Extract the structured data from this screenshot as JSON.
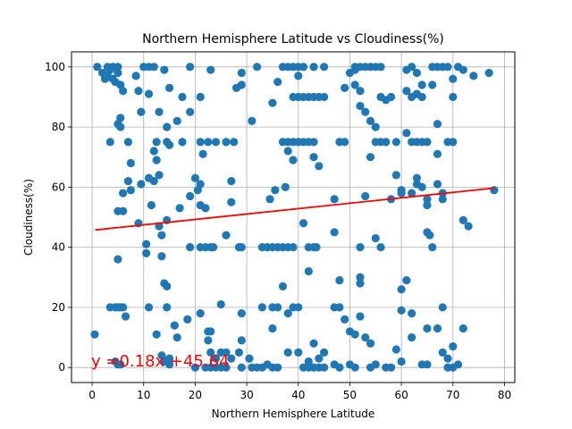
{
  "chart_data": {
    "type": "scatter",
    "title": "Northern Hemisphere Latitude vs Cloudiness(%)",
    "xlabel": "Northern Hemisphere Latitude",
    "ylabel": "Cloudiness(%)",
    "xlim": [
      -4,
      82
    ],
    "ylim": [
      -5,
      105
    ],
    "xticks": [
      0,
      10,
      20,
      30,
      40,
      50,
      60,
      70,
      80
    ],
    "yticks": [
      0,
      20,
      40,
      60,
      80,
      100
    ],
    "grid": true,
    "marker_color": "#1f77b4",
    "regression": {
      "slope": 0.18,
      "intercept": 45.64,
      "x_range": [
        0.6,
        78
      ],
      "color": "#ff0000",
      "equation": "y =0.18x +45.64"
    },
    "series": [
      {
        "points": [
          [
            0.5,
            11
          ],
          [
            1,
            100
          ],
          [
            2,
            98
          ],
          [
            2.5,
            96
          ],
          [
            3,
            100
          ],
          [
            3,
            97
          ],
          [
            3.5,
            99
          ],
          [
            4,
            96
          ],
          [
            4,
            100
          ],
          [
            4.5,
            95
          ],
          [
            5,
            100
          ],
          [
            5,
            98
          ],
          [
            5.5,
            94
          ],
          [
            5,
            81
          ],
          [
            5.5,
            83
          ],
          [
            5.5,
            80
          ],
          [
            3.5,
            75
          ],
          [
            6,
            92
          ],
          [
            6,
            58
          ],
          [
            6,
            52
          ],
          [
            5,
            52
          ],
          [
            6.5,
            17
          ],
          [
            5,
            36
          ],
          [
            3.5,
            20
          ],
          [
            4.5,
            20
          ],
          [
            5,
            20
          ],
          [
            5.5,
            20
          ],
          [
            6,
            20
          ],
          [
            4.5,
            2
          ],
          [
            5,
            1
          ],
          [
            5.5,
            1
          ],
          [
            7,
            75
          ],
          [
            7,
            62
          ],
          [
            7.5,
            68
          ],
          [
            7.5,
            59
          ],
          [
            8.5,
            97
          ],
          [
            9,
            92
          ],
          [
            9.5,
            85
          ],
          [
            9.5,
            61
          ],
          [
            9,
            48
          ],
          [
            10,
            100
          ],
          [
            11,
            100
          ],
          [
            12,
            100
          ],
          [
            10.5,
            41
          ],
          [
            10.5,
            38
          ],
          [
            11,
            91
          ],
          [
            11,
            63
          ],
          [
            11.5,
            54
          ],
          [
            12,
            62
          ],
          [
            11,
            20
          ],
          [
            12,
            72
          ],
          [
            12.5,
            69
          ],
          [
            12.5,
            75
          ],
          [
            13,
            85
          ],
          [
            13,
            64
          ],
          [
            13,
            47
          ],
          [
            13.5,
            44
          ],
          [
            13.5,
            37
          ],
          [
            14,
            28
          ],
          [
            14,
            99
          ],
          [
            14.5,
            80
          ],
          [
            14.5,
            75
          ],
          [
            14.5,
            49
          ],
          [
            14.5,
            27
          ],
          [
            15,
            93
          ],
          [
            15,
            74
          ],
          [
            14.5,
            20
          ],
          [
            12.5,
            11
          ],
          [
            13.5,
            4
          ],
          [
            14,
            2
          ],
          [
            15,
            3
          ],
          [
            15,
            1
          ],
          [
            16,
            14
          ],
          [
            16.5,
            10
          ],
          [
            16.5,
            82
          ],
          [
            17,
            53
          ],
          [
            17.5,
            75
          ],
          [
            17.5,
            90
          ],
          [
            18.5,
            16
          ],
          [
            19,
            57
          ],
          [
            19,
            85
          ],
          [
            19,
            100
          ],
          [
            19,
            40
          ],
          [
            20,
            63
          ],
          [
            20.5,
            59
          ],
          [
            21,
            61
          ],
          [
            21,
            75
          ],
          [
            21,
            90
          ],
          [
            21,
            54
          ],
          [
            21,
            18
          ],
          [
            20,
            0
          ],
          [
            21,
            40
          ],
          [
            22,
            40
          ],
          [
            23,
            40
          ],
          [
            23.5,
            40
          ],
          [
            21.5,
            71
          ],
          [
            22,
            53
          ],
          [
            23,
            99
          ],
          [
            22.5,
            75
          ],
          [
            24,
            75
          ],
          [
            22,
            0
          ],
          [
            23,
            0
          ],
          [
            24,
            0
          ],
          [
            25,
            0
          ],
          [
            26,
            0
          ],
          [
            22.5,
            9
          ],
          [
            22.5,
            12
          ],
          [
            23,
            12
          ],
          [
            23,
            5
          ],
          [
            24,
            3
          ],
          [
            25,
            5
          ],
          [
            26,
            5
          ],
          [
            27,
            3
          ],
          [
            25,
            21
          ],
          [
            26,
            44
          ],
          [
            26,
            75
          ],
          [
            27.5,
            75
          ],
          [
            27,
            62
          ],
          [
            27,
            55
          ],
          [
            28,
            93
          ],
          [
            28.5,
            40
          ],
          [
            29,
            40
          ],
          [
            29,
            18
          ],
          [
            28.5,
            5
          ],
          [
            29,
            9
          ],
          [
            29,
            0
          ],
          [
            29,
            94
          ],
          [
            29,
            98
          ],
          [
            31,
            82
          ],
          [
            32,
            100
          ],
          [
            30.5,
            3
          ],
          [
            31,
            0
          ],
          [
            32,
            0
          ],
          [
            33,
            0
          ],
          [
            34,
            1
          ],
          [
            35,
            0
          ],
          [
            36,
            0
          ],
          [
            33,
            40
          ],
          [
            34,
            40
          ],
          [
            35,
            40
          ],
          [
            36,
            40
          ],
          [
            37,
            40
          ],
          [
            38,
            40
          ],
          [
            39,
            40
          ],
          [
            33,
            20
          ],
          [
            35,
            20
          ],
          [
            36,
            20
          ],
          [
            37,
            27
          ],
          [
            35,
            13
          ],
          [
            38,
            5
          ],
          [
            35,
            88
          ],
          [
            34.5,
            56
          ],
          [
            35.5,
            59
          ],
          [
            37.5,
            60
          ],
          [
            38,
            72
          ],
          [
            37,
            75
          ],
          [
            38,
            75
          ],
          [
            39,
            75
          ],
          [
            40,
            75
          ],
          [
            41,
            75
          ],
          [
            42,
            75
          ],
          [
            43,
            75
          ],
          [
            39,
            69
          ],
          [
            36,
            95
          ],
          [
            37,
            100
          ],
          [
            38,
            100
          ],
          [
            39,
            100
          ],
          [
            40,
            100
          ],
          [
            39,
            90
          ],
          [
            40,
            90
          ],
          [
            41,
            90
          ],
          [
            42,
            90
          ],
          [
            43,
            90
          ],
          [
            44,
            90
          ],
          [
            45,
            90
          ],
          [
            40,
            97
          ],
          [
            41,
            100
          ],
          [
            43,
            100
          ],
          [
            43,
            70
          ],
          [
            44,
            67
          ],
          [
            41,
            48
          ],
          [
            42,
            40
          ],
          [
            43,
            40
          ],
          [
            43.5,
            40
          ],
          [
            42,
            32
          ],
          [
            40,
            20
          ],
          [
            38,
            18
          ],
          [
            39,
            20
          ],
          [
            40,
            5
          ],
          [
            41,
            0
          ],
          [
            42,
            0
          ],
          [
            43,
            0
          ],
          [
            44,
            0
          ],
          [
            45,
            0
          ],
          [
            43,
            8
          ],
          [
            44,
            3
          ],
          [
            42,
            2
          ],
          [
            45,
            5
          ],
          [
            45,
            100
          ],
          [
            47,
            56
          ],
          [
            47,
            45
          ],
          [
            47,
            20
          ],
          [
            48,
            20
          ],
          [
            48,
            29
          ],
          [
            48,
            0
          ],
          [
            47,
            1
          ],
          [
            49,
            16
          ],
          [
            49,
            75
          ],
          [
            48,
            75
          ],
          [
            49,
            93
          ],
          [
            50,
            98
          ],
          [
            51,
            99
          ],
          [
            51,
            100
          ],
          [
            52,
            100
          ],
          [
            53,
            100
          ],
          [
            54,
            100
          ],
          [
            55,
            100
          ],
          [
            56,
            100
          ],
          [
            50,
            12
          ],
          [
            51,
            11
          ],
          [
            52,
            28
          ],
          [
            52,
            30
          ],
          [
            52,
            17
          ],
          [
            53,
            10
          ],
          [
            54,
            8
          ],
          [
            50,
            1
          ],
          [
            51,
            0
          ],
          [
            54,
            0
          ],
          [
            55,
            1
          ],
          [
            57,
            0
          ],
          [
            58,
            0
          ],
          [
            52,
            40
          ],
          [
            53,
            57
          ],
          [
            55,
            43
          ],
          [
            56,
            40
          ],
          [
            51,
            94
          ],
          [
            52,
            92
          ],
          [
            52,
            87
          ],
          [
            53,
            85
          ],
          [
            54,
            82
          ],
          [
            55,
            80
          ],
          [
            56,
            75
          ],
          [
            55,
            75
          ],
          [
            54,
            70
          ],
          [
            56,
            90
          ],
          [
            57,
            89
          ],
          [
            58,
            90
          ],
          [
            57,
            75
          ],
          [
            58,
            56
          ],
          [
            59,
            64
          ],
          [
            60,
            59
          ],
          [
            60,
            58
          ],
          [
            59,
            6
          ],
          [
            60,
            2
          ],
          [
            60,
            19
          ],
          [
            60,
            26
          ],
          [
            61,
            29
          ],
          [
            62,
            18
          ],
          [
            62,
            10
          ],
          [
            61,
            78
          ],
          [
            62,
            75
          ],
          [
            63,
            75
          ],
          [
            64,
            75
          ],
          [
            65,
            75
          ],
          [
            61,
            92
          ],
          [
            62,
            90
          ],
          [
            63,
            91
          ],
          [
            64,
            90
          ],
          [
            61,
            99
          ],
          [
            62,
            100
          ],
          [
            63,
            98
          ],
          [
            64,
            94
          ],
          [
            62,
            58
          ],
          [
            63,
            61
          ],
          [
            63,
            63
          ],
          [
            64,
            60
          ],
          [
            65,
            56
          ],
          [
            65,
            54
          ],
          [
            65,
            45
          ],
          [
            65.5,
            44
          ],
          [
            64,
            1
          ],
          [
            65,
            1
          ],
          [
            65,
            13
          ],
          [
            66,
            40
          ],
          [
            67,
            13
          ],
          [
            66,
            94
          ],
          [
            67,
            100
          ],
          [
            68,
            100
          ],
          [
            69,
            100
          ],
          [
            66,
            100
          ],
          [
            67,
            81
          ],
          [
            67,
            71
          ],
          [
            67,
            61
          ],
          [
            68,
            58
          ],
          [
            68,
            56
          ],
          [
            68,
            20
          ],
          [
            68,
            5
          ],
          [
            69,
            3
          ],
          [
            69,
            0
          ],
          [
            70,
            0
          ],
          [
            70,
            7
          ],
          [
            70,
            75
          ],
          [
            69,
            75
          ],
          [
            70,
            96
          ],
          [
            70,
            90
          ],
          [
            71,
            100
          ],
          [
            72,
            99
          ],
          [
            71,
            1
          ],
          [
            72,
            13
          ],
          [
            72,
            49
          ],
          [
            73,
            47
          ],
          [
            74,
            97
          ],
          [
            77,
            98
          ],
          [
            78,
            59
          ],
          [
            59,
            75
          ]
        ]
      }
    ]
  }
}
